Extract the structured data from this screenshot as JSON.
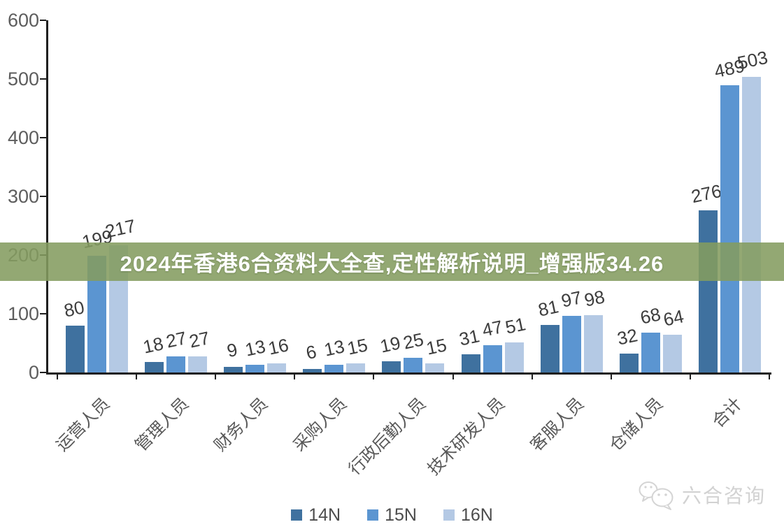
{
  "overlay_banner": {
    "text": "2024年香港6合资料大全查,定性解析说明_增强版34.26",
    "bg_color_rgba": "rgba(132,156,96,0.88)",
    "text_color": "#ffffff"
  },
  "watermark": {
    "text": "六合咨询",
    "icon": "wechat-bubbles-icon",
    "color": "#d2d2d2"
  },
  "chart_data": {
    "type": "bar",
    "title": "",
    "xlabel": "",
    "ylabel": "",
    "categories": [
      "运营人员",
      "管理人员",
      "财务人员",
      "采购人员",
      "行政后勤人员",
      "技术研发人员",
      "客服人员",
      "仓储人员",
      "合计"
    ],
    "series": [
      {
        "name": "14N",
        "color": "#3F719F",
        "values": [
          80,
          18,
          9,
          6,
          19,
          31,
          81,
          32,
          276
        ]
      },
      {
        "name": "15N",
        "color": "#5B95D1",
        "values": [
          199,
          27,
          13,
          13,
          25,
          47,
          97,
          68,
          489
        ]
      },
      {
        "name": "16N",
        "color": "#B4C9E4",
        "values": [
          217,
          27,
          16,
          15,
          15,
          51,
          98,
          64,
          503
        ]
      }
    ],
    "data_labels_shown": true,
    "ylim": [
      0,
      600
    ],
    "yticks": [
      0,
      100,
      200,
      300,
      400,
      500,
      600
    ],
    "grid": false,
    "legend_position": "bottom",
    "axis_color": "#1f1f1f",
    "tick_label_color": "#5d5d5d"
  }
}
